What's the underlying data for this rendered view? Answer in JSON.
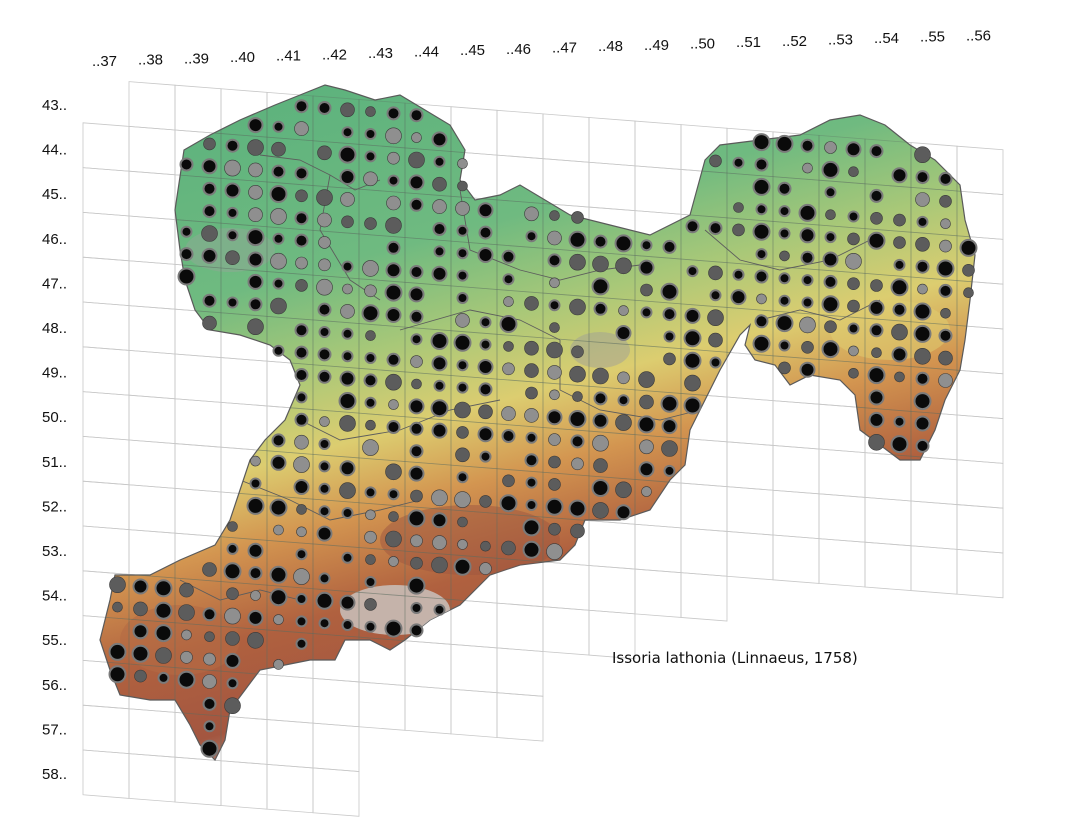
{
  "species": "Issoria lathonia (Linnaeus, 1758)",
  "columns": [
    "..37",
    "..38",
    "..39",
    "..40",
    "..41",
    "..42",
    "..43",
    "..44",
    "..45",
    "..46",
    "..47",
    "..48",
    "..49",
    "..50",
    "..51",
    "..52",
    "..53",
    "..54",
    "..55",
    "..56"
  ],
  "rows": [
    "43..",
    "44..",
    "45..",
    "46..",
    "47..",
    "48..",
    "49..",
    "50..",
    "51..",
    "52..",
    "53..",
    "54..",
    "55..",
    "56..",
    "57..",
    "58.."
  ],
  "legend_colors": {
    "recent": "#0a0a0a",
    "intermediate": "#5c5c5c",
    "historic": "#8f8f8f"
  },
  "terrain_colors": {
    "lowland": "#5fb87e",
    "low_hills": "#8fc77a",
    "hills": "#d9cf72",
    "upland": "#d08a4c",
    "mountain": "#a2533d",
    "summit": "#c9c2bd"
  }
}
